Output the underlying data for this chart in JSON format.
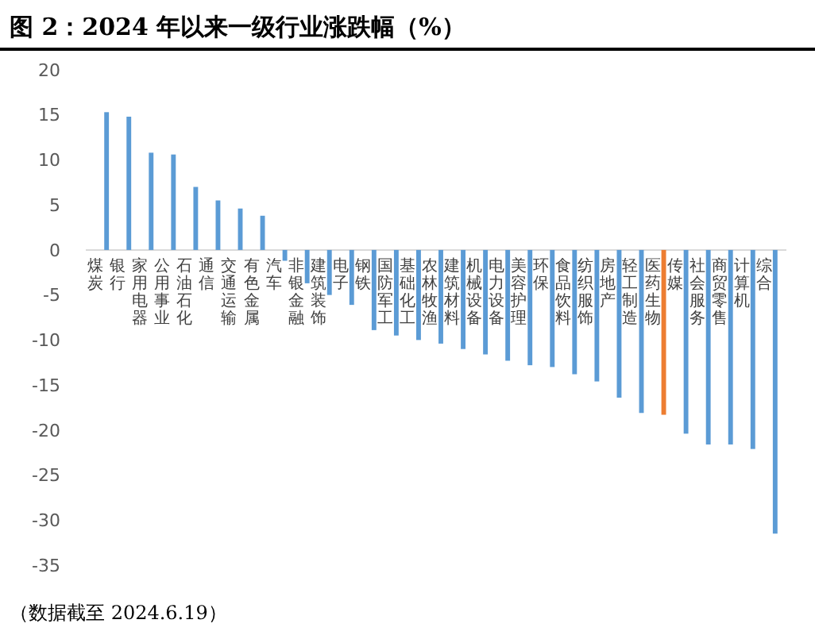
{
  "chart_data": {
    "type": "bar",
    "title": "图 2：2024 年以来一级行业涨跌幅（%）",
    "categories": [
      "煤炭",
      "银行",
      "家用电器",
      "公用事业",
      "石油石化",
      "通信",
      "交通运输",
      "有色金属",
      "汽车",
      "非银金融",
      "建筑装饰",
      "电子",
      "钢铁",
      "国防军工",
      "基础化工",
      "农林牧渔",
      "建筑材料",
      "机械设备",
      "电力设备",
      "美容护理",
      "环保",
      "食品饮料",
      "纺织服饰",
      "房地产",
      "轻工制造",
      "医药生物",
      "传媒",
      "社会服务",
      "商贸零售",
      "计算机",
      "综合"
    ],
    "values": [
      15.3,
      14.8,
      10.8,
      10.6,
      7.0,
      5.5,
      4.6,
      3.8,
      -1.2,
      -3.7,
      -5.0,
      -6.1,
      -8.9,
      -9.5,
      -10.0,
      -10.4,
      -11.0,
      -11.6,
      -12.3,
      -12.8,
      -13.0,
      -13.8,
      -14.6,
      -16.4,
      -18.1,
      -18.3,
      -20.4,
      -21.6,
      -21.6,
      -22.1,
      -31.5
    ],
    "colors": [
      "#5b9bd5",
      "#5b9bd5",
      "#5b9bd5",
      "#5b9bd5",
      "#5b9bd5",
      "#5b9bd5",
      "#5b9bd5",
      "#5b9bd5",
      "#5b9bd5",
      "#5b9bd5",
      "#5b9bd5",
      "#5b9bd5",
      "#5b9bd5",
      "#5b9bd5",
      "#5b9bd5",
      "#5b9bd5",
      "#5b9bd5",
      "#5b9bd5",
      "#5b9bd5",
      "#5b9bd5",
      "#5b9bd5",
      "#5b9bd5",
      "#5b9bd5",
      "#5b9bd5",
      "#5b9bd5",
      "#ed7d31",
      "#5b9bd5",
      "#5b9bd5",
      "#5b9bd5",
      "#5b9bd5",
      "#5b9bd5"
    ],
    "ylim": [
      -35,
      20
    ],
    "yticks": [
      -35,
      -30,
      -25,
      -20,
      -15,
      -10,
      -5,
      0,
      5,
      10,
      15,
      20
    ],
    "grid": false,
    "annotations": [
      "（数据截至 2024.6.19）"
    ]
  }
}
